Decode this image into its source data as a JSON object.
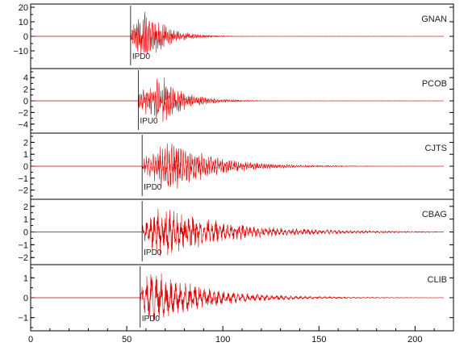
{
  "chart_data": {
    "type": "line",
    "x_axis": {
      "range": [
        0,
        220
      ],
      "ticks": [
        0,
        50,
        100,
        150,
        200
      ],
      "tick_labels": [
        "0",
        "50",
        "100",
        "150",
        "200"
      ]
    },
    "panels": [
      {
        "station": "GNAN",
        "pick_label": "IPD0",
        "pick_time": 52,
        "ylim": [
          -20,
          20
        ],
        "yticks": [
          20,
          10,
          0,
          -10
        ],
        "ytick_labels": [
          "20",
          "10",
          "0",
          "−10"
        ],
        "signal": {
          "onset": 52,
          "peak_time": 60,
          "peak_amplitude": 20,
          "decay_time": 10,
          "end_time": 215,
          "dominant_period": 0.8
        }
      },
      {
        "station": "PCOB",
        "pick_label": "IPU0",
        "pick_time": 56,
        "ylim": [
          -5,
          5
        ],
        "yticks": [
          4,
          2,
          0,
          -2,
          -4
        ],
        "ytick_labels": [
          "4",
          "2",
          "0",
          "−2",
          "−4"
        ],
        "signal": {
          "onset": 56,
          "peak_time": 67,
          "peak_amplitude": 4.5,
          "decay_time": 12,
          "end_time": 215,
          "dominant_period": 0.9
        }
      },
      {
        "station": "CJTS",
        "pick_label": "IPD0",
        "pick_time": 58,
        "ylim": [
          -2.5,
          2.5
        ],
        "yticks": [
          2,
          1,
          0,
          -1,
          -2
        ],
        "ytick_labels": [
          "2",
          "1",
          "0",
          "−1",
          "−2"
        ],
        "signal": {
          "onset": 58,
          "peak_time": 73,
          "peak_amplitude": 2.2,
          "decay_time": 22,
          "end_time": 215,
          "dominant_period": 1.2
        }
      },
      {
        "station": "CBAG",
        "pick_label": "IPD0",
        "pick_time": 58,
        "ylim": [
          -2.3,
          2.3
        ],
        "yticks": [
          2,
          1,
          0,
          -1,
          -2
        ],
        "ytick_labels": [
          "2",
          "1",
          "0",
          "−1",
          "−2"
        ],
        "signal": {
          "onset": 58,
          "peak_time": 68,
          "peak_amplitude": 2.0,
          "decay_time": 35,
          "end_time": 215,
          "dominant_period": 2.0
        }
      },
      {
        "station": "CLIB",
        "pick_label": "IPD0",
        "pick_time": 57,
        "ylim": [
          -1.5,
          1.5
        ],
        "yticks": [
          1,
          0,
          -1
        ],
        "ytick_labels": [
          "1",
          "0",
          "−1"
        ],
        "signal": {
          "onset": 57,
          "peak_time": 62,
          "peak_amplitude": 1.4,
          "decay_time": 28,
          "end_time": 215,
          "dominant_period": 2.5
        }
      }
    ],
    "series_color": "#e00000",
    "grid": false
  }
}
